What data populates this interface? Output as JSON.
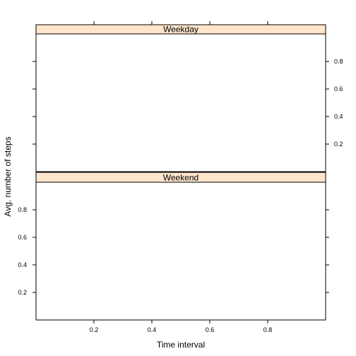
{
  "chart_data": {
    "type": "line",
    "layout": "lattice, 2 panels stacked vertically, shared axes",
    "xlabel": "Time interval",
    "ylabel": "Avg. number of steps",
    "xlim": [
      0,
      1
    ],
    "ylim": [
      0,
      1
    ],
    "x_ticks": [
      "0.2",
      "0.4",
      "0.6",
      "0.8"
    ],
    "y_ticks": [
      "0.2",
      "0.4",
      "0.6",
      "0.8"
    ],
    "grid": false,
    "strip_color": "#ffe5cc",
    "panels": [
      {
        "strip": "Weekday",
        "series": []
      },
      {
        "strip": "Weekend",
        "series": []
      }
    ]
  }
}
